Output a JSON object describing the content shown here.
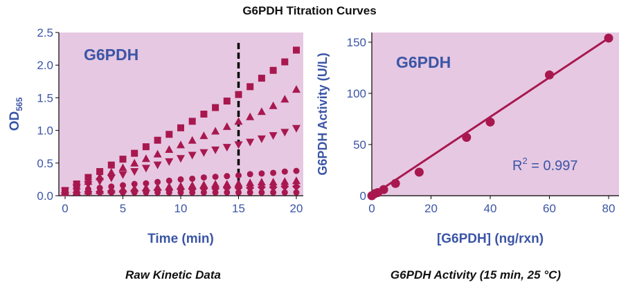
{
  "title": "G6PDH Titration Curves",
  "colors": {
    "background": "#e6c8e2",
    "marker": "#a8184f",
    "axis_text": "#3b55a6",
    "inset_text": "#3b55a6",
    "dashed_line": "#000000"
  },
  "chart_data": [
    {
      "type": "scatter",
      "caption": "Raw Kinetic Data",
      "inset_label": "G6PDH",
      "xlabel": "Time (min)",
      "ylabel_main": "OD",
      "ylabel_sub": "565",
      "xlim": [
        0,
        20
      ],
      "ylim": [
        0,
        2.5
      ],
      "xticks": [
        "0",
        "5",
        "10",
        "15",
        "20"
      ],
      "yticks": [
        "0.0",
        "0.5",
        "1.0",
        "1.5",
        "2.0",
        "2.5"
      ],
      "vline_x": 15,
      "x": [
        0,
        1,
        2,
        3,
        4,
        5,
        6,
        7,
        8,
        9,
        10,
        11,
        12,
        13,
        14,
        15,
        16,
        17,
        18,
        19,
        20
      ],
      "series": [
        {
          "marker": "square",
          "values": [
            0.08,
            0.18,
            0.28,
            0.37,
            0.47,
            0.56,
            0.65,
            0.75,
            0.85,
            0.94,
            1.04,
            1.14,
            1.25,
            1.35,
            1.45,
            1.55,
            1.67,
            1.8,
            1.92,
            2.05,
            2.23
          ]
        },
        {
          "marker": "triangle-up",
          "values": [
            0.07,
            0.15,
            0.22,
            0.29,
            0.36,
            0.43,
            0.5,
            0.57,
            0.64,
            0.71,
            0.78,
            0.85,
            0.92,
            0.99,
            1.06,
            1.14,
            1.21,
            1.29,
            1.38,
            1.48,
            1.63
          ]
        },
        {
          "marker": "triangle-down",
          "values": [
            0.07,
            0.12,
            0.17,
            0.22,
            0.27,
            0.32,
            0.37,
            0.42,
            0.47,
            0.52,
            0.57,
            0.62,
            0.66,
            0.7,
            0.74,
            0.78,
            0.82,
            0.87,
            0.92,
            0.97,
            1.03
          ]
        },
        {
          "marker": "circle",
          "values": [
            0.06,
            0.08,
            0.1,
            0.12,
            0.14,
            0.16,
            0.18,
            0.19,
            0.21,
            0.23,
            0.25,
            0.26,
            0.28,
            0.29,
            0.3,
            0.31,
            0.33,
            0.34,
            0.35,
            0.37,
            0.38
          ]
        },
        {
          "marker": "triangle-up",
          "values": [
            0.05,
            0.06,
            0.07,
            0.08,
            0.09,
            0.1,
            0.11,
            0.12,
            0.13,
            0.14,
            0.15,
            0.16,
            0.17,
            0.18,
            0.18,
            0.19,
            0.2,
            0.21,
            0.21,
            0.22,
            0.23
          ]
        },
        {
          "marker": "diamond",
          "values": [
            0.05,
            0.05,
            0.06,
            0.06,
            0.07,
            0.07,
            0.08,
            0.08,
            0.09,
            0.09,
            0.1,
            0.1,
            0.11,
            0.11,
            0.12,
            0.12,
            0.12,
            0.13,
            0.13,
            0.14,
            0.14
          ]
        },
        {
          "marker": "circle",
          "values": [
            0.05,
            0.05,
            0.05,
            0.05,
            0.05,
            0.05,
            0.05,
            0.05,
            0.05,
            0.05,
            0.05,
            0.05,
            0.05,
            0.05,
            0.05,
            0.05,
            0.05,
            0.05,
            0.05,
            0.05,
            0.05
          ]
        }
      ]
    },
    {
      "type": "scatter",
      "caption": "G6PDH Activity (15 min, 25 °C)",
      "inset_label": "G6PDH",
      "xlabel": "[G6PDH] (ng/rxn)",
      "ylabel": "G6PDH Activity (U/L)",
      "xlim": [
        0,
        80
      ],
      "ylim": [
        0,
        150
      ],
      "xticks": [
        "0",
        "20",
        "40",
        "60",
        "80"
      ],
      "yticks": [
        "0",
        "50",
        "100",
        "150"
      ],
      "r2_label": "R",
      "r2_sup": "2",
      "r2_value": " = 0.997",
      "x": [
        0,
        1,
        2,
        4,
        8,
        16,
        32,
        40,
        60,
        80
      ],
      "values": [
        0,
        2,
        3,
        6,
        12,
        23,
        57,
        72,
        118,
        154
      ],
      "fit": {
        "x": [
          0,
          80
        ],
        "y": [
          0,
          154
        ]
      }
    }
  ]
}
